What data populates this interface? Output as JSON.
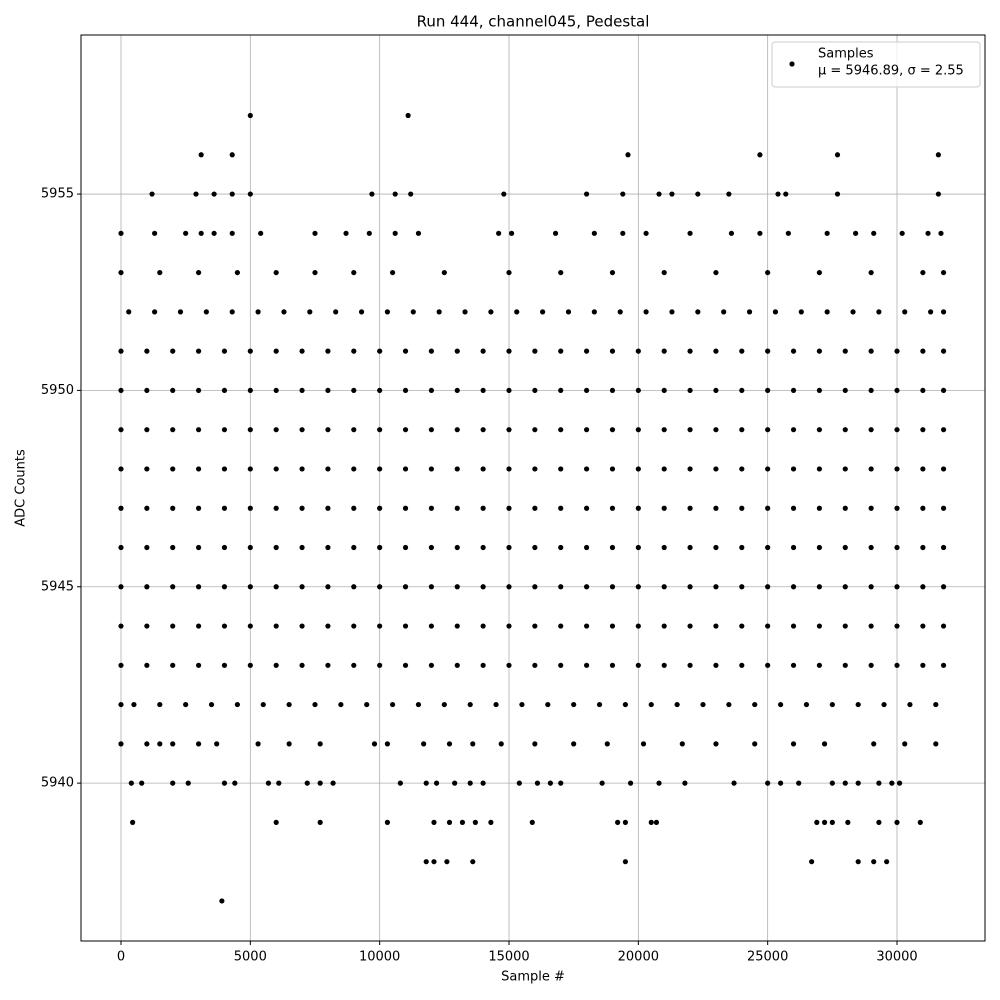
{
  "chart_data": {
    "type": "scatter",
    "title": "Run 444, channel045, Pedestal",
    "x_label": "Sample #",
    "y_label": "ADC Counts",
    "legend_text": "μ = 5946.89, σ = 2.55",
    "legend": "upper right",
    "grid": true,
    "xlim": [
      -1546,
      33402
    ],
    "ylim": [
      5935.98,
      5959.05
    ],
    "xticks": [
      0,
      5000,
      10000,
      15000,
      20000,
      25000,
      30000
    ],
    "yticks": [
      5940,
      5945,
      5950,
      5955
    ],
    "x": [
      0,
      1500,
      3000,
      4500,
      6000,
      7500,
      9000,
      10500,
      12500,
      15000,
      17000,
      19000,
      21000,
      23000,
      25000,
      27000,
      29000,
      31000,
      31800,
      0,
      1300,
      2500,
      3100,
      3600,
      4300,
      5400,
      7500,
      8700,
      9600,
      10600,
      11500,
      14600,
      15100,
      16800,
      18300,
      19400,
      20300,
      22000,
      23600,
      24700,
      25800,
      27300,
      28400,
      29100,
      30200,
      31200,
      31700,
      1200,
      2900,
      3600,
      4300,
      5000,
      9700,
      10600,
      11200,
      14800,
      18000,
      19400,
      20800,
      21300,
      22300,
      23500,
      25400,
      25700,
      27700,
      31600,
      3100,
      4300,
      19600,
      24700,
      27700,
      31600,
      5000,
      11100,
      0,
      1000,
      1500,
      2000,
      3000,
      3700,
      5300,
      6500,
      7700,
      9800,
      10300,
      11700,
      12700,
      13600,
      14700,
      16000,
      17500,
      18800,
      20200,
      21700,
      23000,
      24500,
      26000,
      27200,
      29100,
      30300,
      31500,
      400,
      800,
      2000,
      2600,
      4000,
      4400,
      5700,
      6100,
      7200,
      7700,
      8200,
      10800,
      11800,
      12200,
      12900,
      13500,
      14000,
      15400,
      16100,
      16600,
      17000,
      18600,
      19700,
      20800,
      21800,
      23700,
      25000,
      25500,
      26200,
      27500,
      28000,
      28500,
      29300,
      29800,
      30100,
      450,
      6000,
      7700,
      10300,
      12100,
      12700,
      13200,
      13700,
      14300,
      15900,
      19200,
      19500,
      20500,
      20700,
      26900,
      27200,
      27500,
      28100,
      29300,
      30000,
      30900,
      11800,
      12100,
      12600,
      13600,
      19500,
      26700,
      28500,
      29100,
      29600,
      3900,
      0,
      500,
      1500,
      2500,
      3500,
      4500,
      5500,
      6500,
      7500,
      8500,
      9500,
      10500,
      11500,
      12500,
      13500,
      14500,
      15500,
      16500,
      17500,
      18500,
      19500,
      20500,
      21500,
      22500,
      23500,
      24500,
      25500,
      26500,
      27500,
      28500,
      29500,
      30500,
      31500,
      0,
      1000,
      2000,
      3000,
      4000,
      5000,
      6000,
      7000,
      8000,
      9000,
      10000,
      11000,
      12000,
      13000,
      14000,
      15000,
      16000,
      17000,
      18000,
      19000,
      20000,
      21000,
      22000,
      23000,
      24000,
      25000,
      26000,
      27000,
      28000,
      29000,
      30000,
      31000,
      31800,
      0,
      1000,
      2000,
      3000,
      4000,
      5000,
      6000,
      7000,
      8000,
      9000,
      10000,
      11000,
      12000,
      13000,
      14000,
      15000,
      16000,
      17000,
      18000,
      19000,
      20000,
      21000,
      22000,
      23000,
      24000,
      25000,
      26000,
      27000,
      28000,
      29000,
      30000,
      31000,
      31800,
      0,
      1000,
      2000,
      3000,
      4000,
      5000,
      6000,
      7000,
      8000,
      9000,
      10000,
      11000,
      12000,
      13000,
      14000,
      15000,
      16000,
      17000,
      18000,
      19000,
      20000,
      21000,
      22000,
      23000,
      24000,
      25000,
      26000,
      27000,
      28000,
      29000,
      30000,
      31000,
      31800,
      0,
      1000,
      2000,
      3000,
      4000,
      5000,
      6000,
      7000,
      8000,
      9000,
      10000,
      11000,
      12000,
      13000,
      14000,
      15000,
      16000,
      17000,
      18000,
      19000,
      20000,
      21000,
      22000,
      23000,
      24000,
      25000,
      26000,
      27000,
      28000,
      29000,
      30000,
      31000,
      31800,
      0,
      1000,
      2000,
      3000,
      4000,
      5000,
      6000,
      7000,
      8000,
      9000,
      10000,
      11000,
      12000,
      13000,
      14000,
      15000,
      16000,
      17000,
      18000,
      19000,
      20000,
      21000,
      22000,
      23000,
      24000,
      25000,
      26000,
      27000,
      28000,
      29000,
      30000,
      31000,
      31800,
      0,
      1000,
      2000,
      3000,
      4000,
      5000,
      6000,
      7000,
      8000,
      9000,
      10000,
      11000,
      12000,
      13000,
      14000,
      15000,
      16000,
      17000,
      18000,
      19000,
      20000,
      21000,
      22000,
      23000,
      24000,
      25000,
      26000,
      27000,
      28000,
      29000,
      30000,
      31000,
      31800,
      0,
      1000,
      2000,
      3000,
      4000,
      5000,
      6000,
      7000,
      8000,
      9000,
      10000,
      11000,
      12000,
      13000,
      14000,
      15000,
      16000,
      17000,
      18000,
      19000,
      20000,
      21000,
      22000,
      23000,
      24000,
      25000,
      26000,
      27000,
      28000,
      29000,
      30000,
      31000,
      31800,
      0,
      1000,
      2000,
      3000,
      4000,
      5000,
      6000,
      7000,
      8000,
      9000,
      10000,
      11000,
      12000,
      13000,
      14000,
      15000,
      16000,
      17000,
      18000,
      19000,
      20000,
      21000,
      22000,
      23000,
      24000,
      25000,
      26000,
      27000,
      28000,
      29000,
      30000,
      31000,
      31800,
      0,
      1000,
      2000,
      3000,
      4000,
      5000,
      6000,
      7000,
      8000,
      9000,
      10000,
      11000,
      12000,
      13000,
      14000,
      15000,
      16000,
      17000,
      18000,
      19000,
      20000,
      21000,
      22000,
      23000,
      24000,
      25000,
      26000,
      27000,
      28000,
      29000,
      30000,
      31000,
      31800,
      300,
      1300,
      2300,
      3300,
      4300,
      5300,
      6300,
      7300,
      8300,
      9300,
      10300,
      11300,
      12300,
      13300,
      14300,
      15300,
      16300,
      17300,
      18300,
      19300,
      20300,
      21300,
      22300,
      23300,
      24300,
      25300,
      26300,
      27300,
      28300,
      29300,
      30300,
      31300,
      31800
    ],
    "series": [
      {
        "name": "Samples",
        "color": "#000000",
        "values": [
          5953,
          5953,
          5953,
          5953,
          5953,
          5953,
          5953,
          5953,
          5953,
          5953,
          5953,
          5953,
          5953,
          5953,
          5953,
          5953,
          5953,
          5953,
          5953,
          5954,
          5954,
          5954,
          5954,
          5954,
          5954,
          5954,
          5954,
          5954,
          5954,
          5954,
          5954,
          5954,
          5954,
          5954,
          5954,
          5954,
          5954,
          5954,
          5954,
          5954,
          5954,
          5954,
          5954,
          5954,
          5954,
          5954,
          5954,
          5955,
          5955,
          5955,
          5955,
          5955,
          5955,
          5955,
          5955,
          5955,
          5955,
          5955,
          5955,
          5955,
          5955,
          5955,
          5955,
          5955,
          5955,
          5955,
          5956,
          5956,
          5956,
          5956,
          5956,
          5956,
          5957,
          5957,
          5941,
          5941,
          5941,
          5941,
          5941,
          5941,
          5941,
          5941,
          5941,
          5941,
          5941,
          5941,
          5941,
          5941,
          5941,
          5941,
          5941,
          5941,
          5941,
          5941,
          5941,
          5941,
          5941,
          5941,
          5941,
          5941,
          5941,
          5940,
          5940,
          5940,
          5940,
          5940,
          5940,
          5940,
          5940,
          5940,
          5940,
          5940,
          5940,
          5940,
          5940,
          5940,
          5940,
          5940,
          5940,
          5940,
          5940,
          5940,
          5940,
          5940,
          5940,
          5940,
          5940,
          5940,
          5940,
          5940,
          5940,
          5940,
          5940,
          5940,
          5940,
          5940,
          5939,
          5939,
          5939,
          5939,
          5939,
          5939,
          5939,
          5939,
          5939,
          5939,
          5939,
          5939,
          5939,
          5939,
          5939,
          5939,
          5939,
          5939,
          5939,
          5939,
          5939,
          5938,
          5938,
          5938,
          5938,
          5938,
          5938,
          5938,
          5938,
          5938,
          5937,
          5942,
          5942,
          5942,
          5942,
          5942,
          5942,
          5942,
          5942,
          5942,
          5942,
          5942,
          5942,
          5942,
          5942,
          5942,
          5942,
          5942,
          5942,
          5942,
          5942,
          5942,
          5942,
          5942,
          5942,
          5942,
          5942,
          5942,
          5942,
          5942,
          5942,
          5942,
          5942,
          5942,
          5943,
          5943,
          5943,
          5943,
          5943,
          5943,
          5943,
          5943,
          5943,
          5943,
          5943,
          5943,
          5943,
          5943,
          5943,
          5943,
          5943,
          5943,
          5943,
          5943,
          5943,
          5943,
          5943,
          5943,
          5943,
          5943,
          5943,
          5943,
          5943,
          5943,
          5943,
          5943,
          5943,
          5944,
          5944,
          5944,
          5944,
          5944,
          5944,
          5944,
          5944,
          5944,
          5944,
          5944,
          5944,
          5944,
          5944,
          5944,
          5944,
          5944,
          5944,
          5944,
          5944,
          5944,
          5944,
          5944,
          5944,
          5944,
          5944,
          5944,
          5944,
          5944,
          5944,
          5944,
          5944,
          5944,
          5945,
          5945,
          5945,
          5945,
          5945,
          5945,
          5945,
          5945,
          5945,
          5945,
          5945,
          5945,
          5945,
          5945,
          5945,
          5945,
          5945,
          5945,
          5945,
          5945,
          5945,
          5945,
          5945,
          5945,
          5945,
          5945,
          5945,
          5945,
          5945,
          5945,
          5945,
          5945,
          5945,
          5946,
          5946,
          5946,
          5946,
          5946,
          5946,
          5946,
          5946,
          5946,
          5946,
          5946,
          5946,
          5946,
          5946,
          5946,
          5946,
          5946,
          5946,
          5946,
          5946,
          5946,
          5946,
          5946,
          5946,
          5946,
          5946,
          5946,
          5946,
          5946,
          5946,
          5946,
          5946,
          5946,
          5947,
          5947,
          5947,
          5947,
          5947,
          5947,
          5947,
          5947,
          5947,
          5947,
          5947,
          5947,
          5947,
          5947,
          5947,
          5947,
          5947,
          5947,
          5947,
          5947,
          5947,
          5947,
          5947,
          5947,
          5947,
          5947,
          5947,
          5947,
          5947,
          5947,
          5947,
          5947,
          5947,
          5948,
          5948,
          5948,
          5948,
          5948,
          5948,
          5948,
          5948,
          5948,
          5948,
          5948,
          5948,
          5948,
          5948,
          5948,
          5948,
          5948,
          5948,
          5948,
          5948,
          5948,
          5948,
          5948,
          5948,
          5948,
          5948,
          5948,
          5948,
          5948,
          5948,
          5948,
          5948,
          5948,
          5949,
          5949,
          5949,
          5949,
          5949,
          5949,
          5949,
          5949,
          5949,
          5949,
          5949,
          5949,
          5949,
          5949,
          5949,
          5949,
          5949,
          5949,
          5949,
          5949,
          5949,
          5949,
          5949,
          5949,
          5949,
          5949,
          5949,
          5949,
          5949,
          5949,
          5949,
          5949,
          5949,
          5950,
          5950,
          5950,
          5950,
          5950,
          5950,
          5950,
          5950,
          5950,
          5950,
          5950,
          5950,
          5950,
          5950,
          5950,
          5950,
          5950,
          5950,
          5950,
          5950,
          5950,
          5950,
          5950,
          5950,
          5950,
          5950,
          5950,
          5950,
          5950,
          5950,
          5950,
          5950,
          5950,
          5951,
          5951,
          5951,
          5951,
          5951,
          5951,
          5951,
          5951,
          5951,
          5951,
          5951,
          5951,
          5951,
          5951,
          5951,
          5951,
          5951,
          5951,
          5951,
          5951,
          5951,
          5951,
          5951,
          5951,
          5951,
          5951,
          5951,
          5951,
          5951,
          5951,
          5951,
          5951,
          5951,
          5952,
          5952,
          5952,
          5952,
          5952,
          5952,
          5952,
          5952,
          5952,
          5952,
          5952,
          5952,
          5952,
          5952,
          5952,
          5952,
          5952,
          5952,
          5952,
          5952,
          5952,
          5952,
          5952,
          5952,
          5952,
          5952,
          5952,
          5952,
          5952,
          5952,
          5952,
          5952,
          5952
        ]
      }
    ]
  }
}
